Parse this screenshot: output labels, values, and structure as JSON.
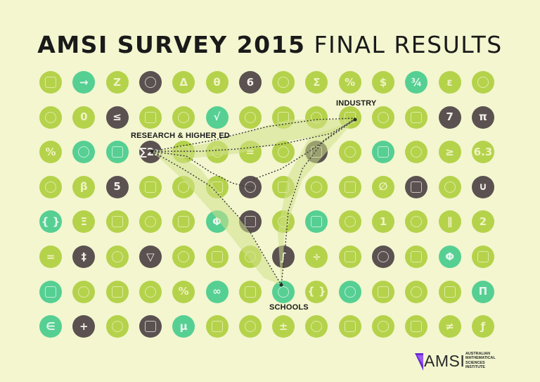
{
  "title": {
    "bold": "AMSI SURVEY 2015",
    "light": "FINAL RESULTS"
  },
  "labels": {
    "industry": "INDUSTRY",
    "research": "RESEARCH & HIGHER ED",
    "schools": "SCHOOLS"
  },
  "logo": {
    "word": "AMSI",
    "sub_lines": [
      "AUSTRALIAN",
      "MATHEMATICAL",
      "SCIENCES",
      "INSTITUTE"
    ]
  },
  "colors": {
    "green": "#b5d24b",
    "teal": "#56cf93",
    "dark": "#5a5150",
    "background": "#f3f6cf",
    "logo_accent": "#6b2bd6"
  },
  "grid": [
    [
      "g:cube-icon",
      "t:→",
      "g:Z",
      "d:eye-icon",
      "g:Δ",
      "g:θ",
      "d:6",
      "g:mountain-icon",
      "g:Σ",
      "g:%",
      "g:$",
      "t:¾",
      "g:ε",
      "g:cloud-icon"
    ],
    [
      "g:bar-chart-icon",
      "g:0",
      "d:≤",
      "g:cone-icon",
      "g:helmet-icon",
      "t:√",
      "g:dots-icon",
      "g:factory-icon",
      "g:building-icon",
      "g:truck-icon",
      "g:hands-icon",
      "g:burst-icon",
      "d:7",
      "d:π"
    ],
    [
      "g:%",
      "t:wifi-icon",
      "t:tuning-fork-icon",
      "d:∑2n",
      "g:glasses-icon",
      "g:lightbulb-icon",
      "g:=",
      "g:leaf-icon",
      "d:gear-icon",
      "g:microscope-icon",
      "t:city-icon",
      "g:trophy-icon",
      "g:≥",
      "g:6.3"
    ],
    [
      "g:burst-icon",
      "g:β",
      "d:5",
      "g:drops-icon",
      "g:circles-icon",
      "g:car-icon",
      "d:wind-turbine-icon",
      "g:chart-icon",
      "g:atom-icon",
      "g:sun-cloud-icon",
      "g:∅",
      "d:growth-chart-icon",
      "g:leaf-icon",
      "d:∪"
    ],
    [
      "t:{ }",
      "g:Ξ",
      "g:scissors-icon",
      "g:funnel-icon",
      "g:box-icon",
      "t:Φ",
      "d:wave-icon",
      "g:divide-icon",
      "t:ruler-icon",
      "g:cylinder-icon",
      "g:1",
      "g:calculator-icon",
      "g:∥",
      "g:2"
    ],
    [
      "g:=",
      "d:‡",
      "g:triangle-icon",
      "d:▽",
      "g:dinosaur-icon",
      "g:arrows-icon",
      "g:ticket-icon",
      "d:∫",
      "g:÷",
      "g:molecule-icon",
      "d:snowflake-icon",
      "g:compass-icon",
      "t:Φ",
      "g:umbrella-icon"
    ],
    [
      "t:boat-icon",
      "g:bolt-icon",
      "g:search-icon",
      "g:head-icon",
      "g:%",
      "t:∞",
      "g:ruler-icon",
      "t:book-icon",
      "g:{ }",
      "t:compass-icon",
      "g:truck-icon",
      "g:chair-icon",
      "g:globe-icon",
      "t:Π"
    ],
    [
      "t:∈",
      "d:+",
      "g:bottle-icon",
      "d:signpost-icon",
      "t:μ",
      "g:bulb-icon",
      "g:spiral-icon",
      "g:±",
      "g:skyline-icon",
      "g:hourglass-icon",
      "g:pot-icon",
      "g:cup-icon",
      "g:≠",
      "g:ƒ"
    ]
  ]
}
